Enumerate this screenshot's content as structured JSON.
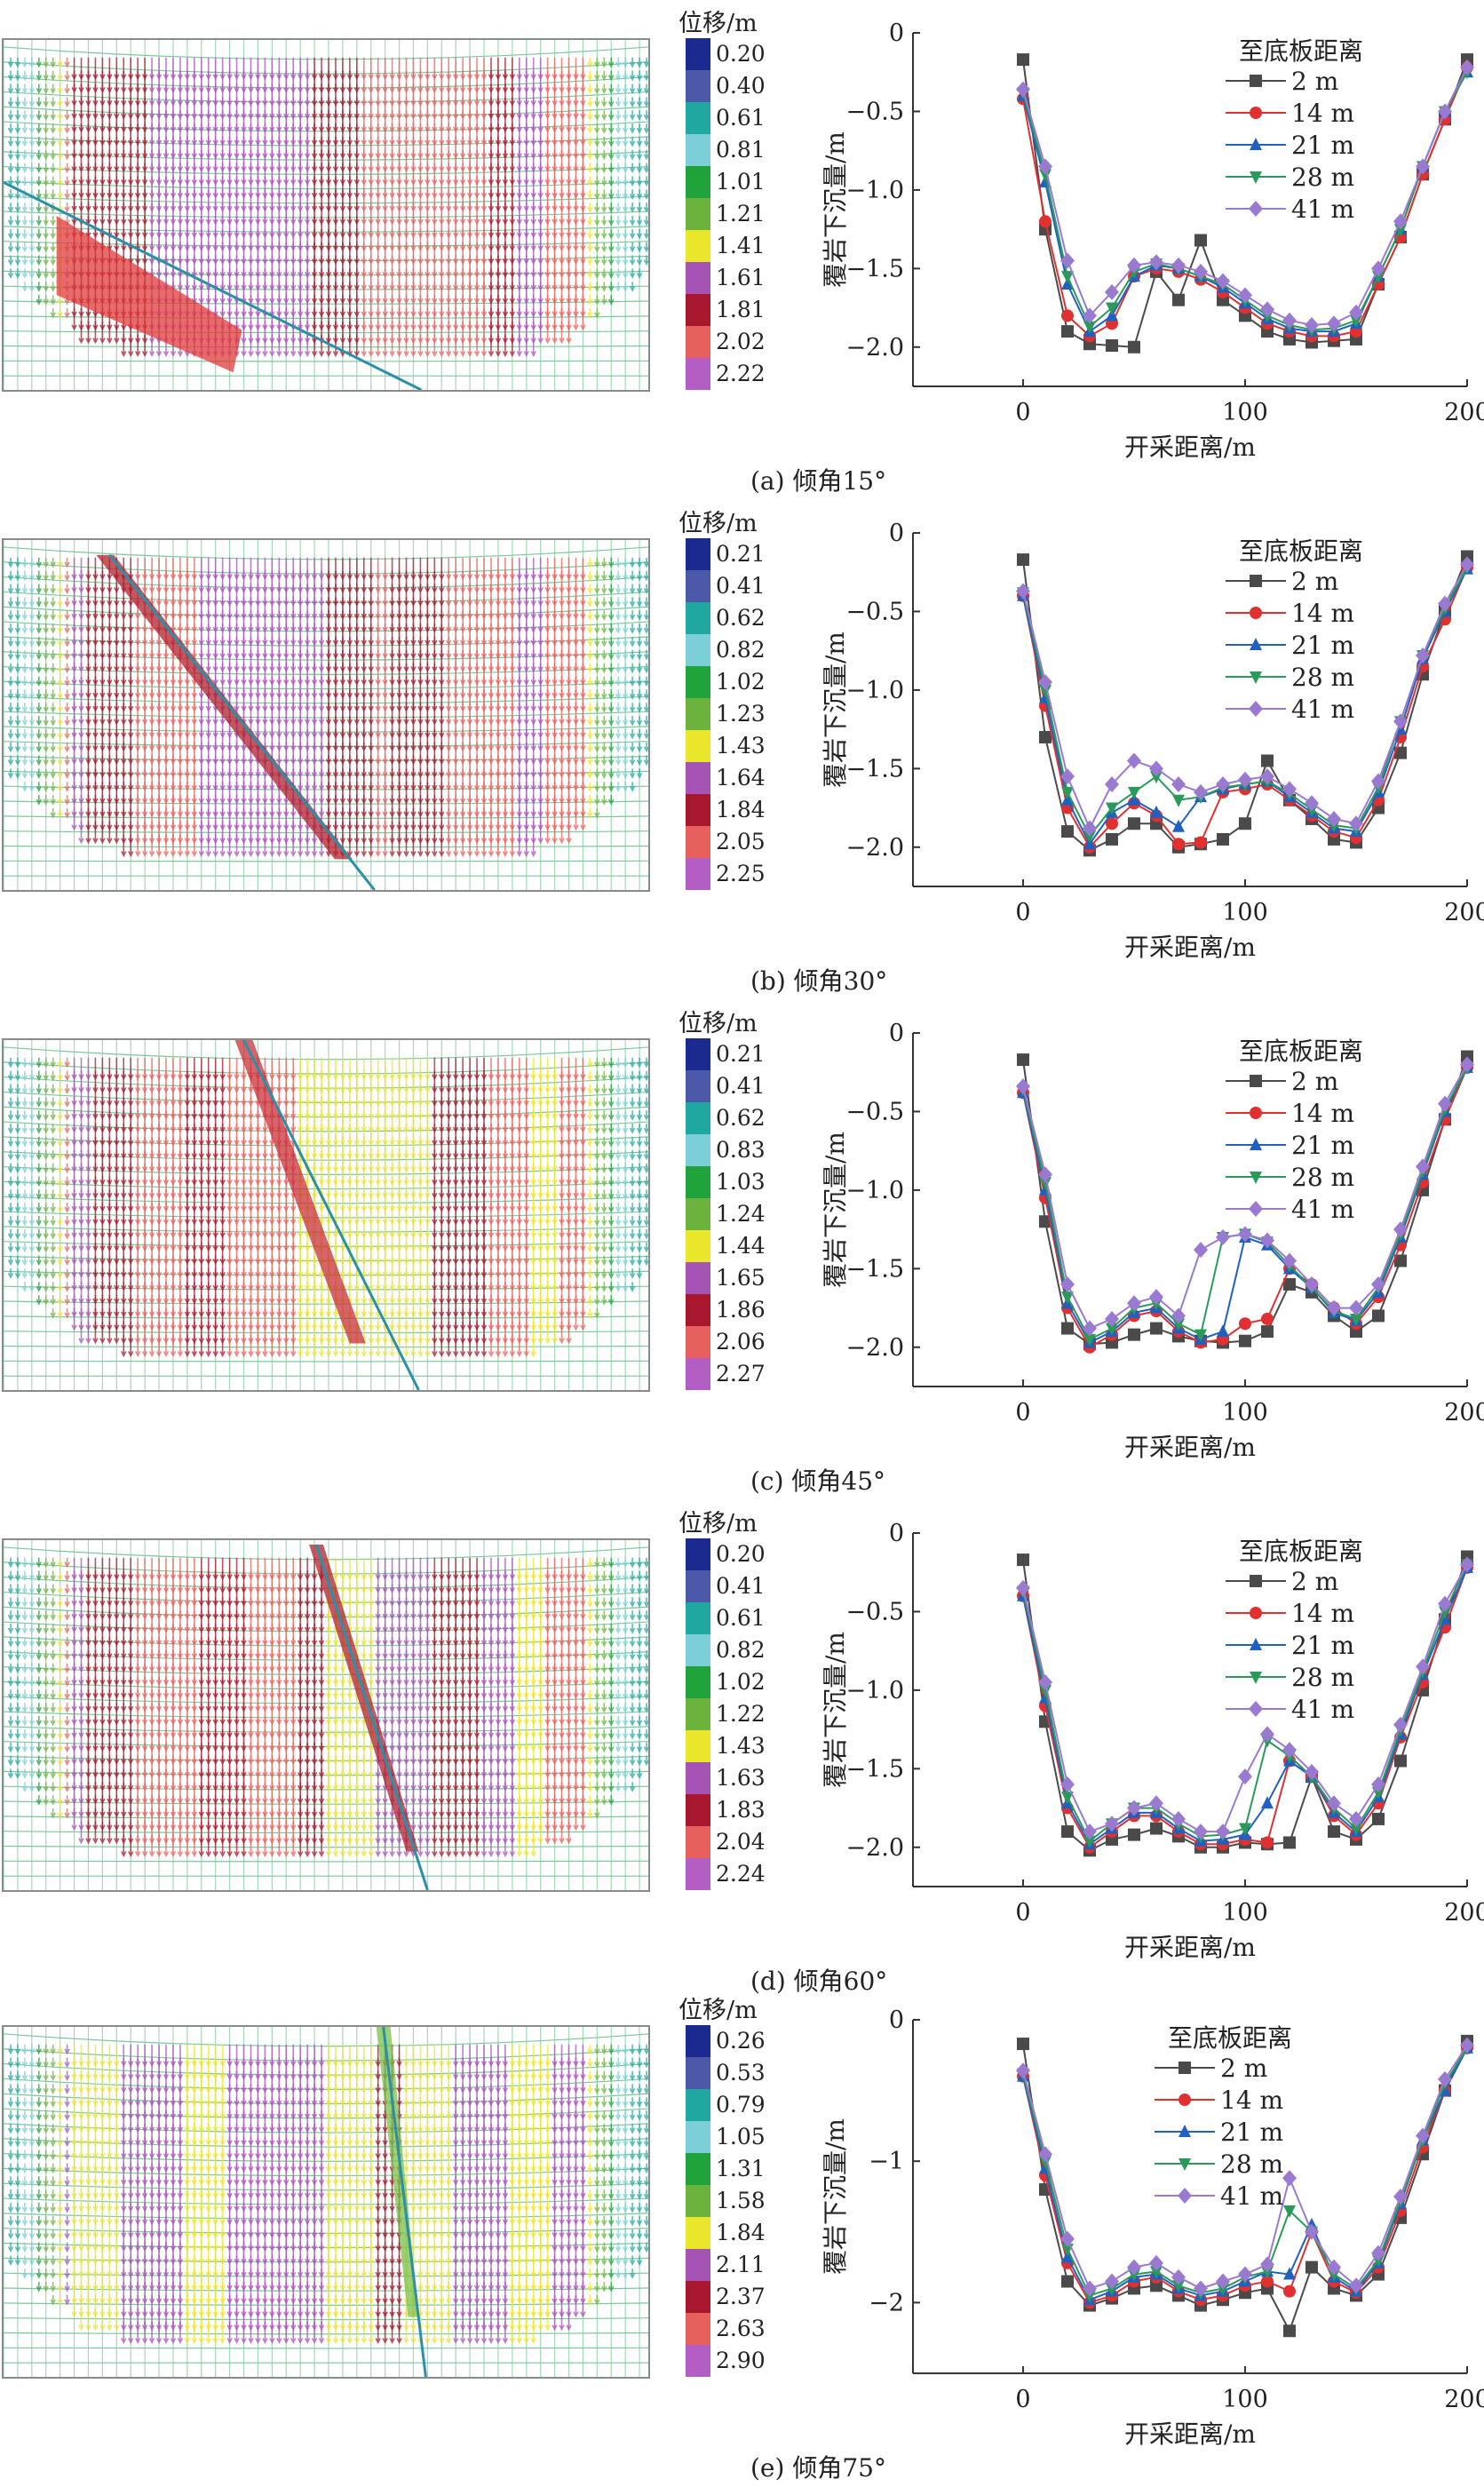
{
  "panels": [
    {
      "caption": "(a) 倾角15°",
      "colorbar": {
        "title": "位移/m",
        "values": [
          "0.20",
          "0.40",
          "0.61",
          "0.81",
          "1.01",
          "1.21",
          "1.41",
          "1.61",
          "1.81",
          "2.02",
          "2.22"
        ]
      }
    },
    {
      "caption": "(b) 倾角30°",
      "colorbar": {
        "title": "位移/m",
        "values": [
          "0.21",
          "0.41",
          "0.62",
          "0.82",
          "1.02",
          "1.23",
          "1.43",
          "1.64",
          "1.84",
          "2.05",
          "2.25"
        ]
      }
    },
    {
      "caption": "(c) 倾角45°",
      "colorbar": {
        "title": "位移/m",
        "values": [
          "0.21",
          "0.41",
          "0.62",
          "0.83",
          "1.03",
          "1.24",
          "1.44",
          "1.65",
          "1.86",
          "2.06",
          "2.27"
        ]
      }
    },
    {
      "caption": "(d) 倾角60°",
      "colorbar": {
        "title": "位移/m",
        "values": [
          "0.20",
          "0.41",
          "0.61",
          "0.82",
          "1.02",
          "1.22",
          "1.43",
          "1.63",
          "1.83",
          "2.04",
          "2.24"
        ]
      }
    },
    {
      "caption": "(e) 倾角75°",
      "colorbar": {
        "title": "位移/m",
        "values": [
          "0.26",
          "0.53",
          "0.79",
          "1.05",
          "1.31",
          "1.58",
          "1.84",
          "2.11",
          "2.37",
          "2.63",
          "2.90"
        ]
      }
    }
  ],
  "colorbar_colors": [
    "#1b2a8e",
    "#4a5aa8",
    "#1fa8a0",
    "#7ccfd6",
    "#1fa33a",
    "#6cb33e",
    "#e9e62c",
    "#a654b4",
    "#a8172b",
    "#e8605e",
    "#b25ec4"
  ],
  "chart_data": [
    {
      "type": "line",
      "title": "",
      "xlabel": "开采距离/m",
      "ylabel": "覆岩下沉量/m",
      "legend_title": "至底板距离",
      "legend_position": "top-right",
      "xlim": [
        -50,
        200
      ],
      "ylim": [
        -2.25,
        0
      ],
      "xticks": [
        0,
        100,
        200
      ],
      "yticks": [
        0,
        -0.5,
        -1.0,
        -1.5,
        -2.0
      ],
      "ytick_labels": [
        "0",
        "−0.5",
        "−1.0",
        "−1.5",
        "−2.0"
      ],
      "x": [
        0,
        10,
        20,
        30,
        40,
        50,
        60,
        70,
        80,
        90,
        100,
        110,
        120,
        130,
        140,
        150,
        160,
        170,
        180,
        190,
        200
      ],
      "series": [
        {
          "name": "2 m",
          "color": "#4a4a4a",
          "marker": "square",
          "values": [
            -0.17,
            -1.25,
            -1.9,
            -1.98,
            -1.99,
            -2.0,
            -1.52,
            -1.7,
            -1.32,
            -1.7,
            -1.8,
            -1.9,
            -1.95,
            -1.97,
            -1.96,
            -1.95,
            -1.6,
            -1.3,
            -0.9,
            -0.55,
            -0.17
          ]
        },
        {
          "name": "14 m",
          "color": "#e03030",
          "marker": "circle",
          "values": [
            -0.42,
            -1.2,
            -1.8,
            -1.93,
            -1.85,
            -1.55,
            -1.5,
            -1.52,
            -1.57,
            -1.65,
            -1.75,
            -1.85,
            -1.9,
            -1.93,
            -1.93,
            -1.9,
            -1.6,
            -1.3,
            -0.9,
            -0.55,
            -0.22
          ]
        },
        {
          "name": "21 m",
          "color": "#2060c0",
          "marker": "triangle-up",
          "values": [
            -0.4,
            -0.95,
            -1.6,
            -1.9,
            -1.8,
            -1.55,
            -1.48,
            -1.5,
            -1.55,
            -1.62,
            -1.72,
            -1.82,
            -1.88,
            -1.9,
            -1.9,
            -1.85,
            -1.55,
            -1.25,
            -0.85,
            -0.5,
            -0.25
          ]
        },
        {
          "name": "28 m",
          "color": "#2a9a5a",
          "marker": "triangle-down",
          "values": [
            -0.38,
            -0.9,
            -1.55,
            -1.87,
            -1.75,
            -1.52,
            -1.47,
            -1.5,
            -1.55,
            -1.6,
            -1.7,
            -1.8,
            -1.86,
            -1.89,
            -1.88,
            -1.83,
            -1.55,
            -1.25,
            -0.85,
            -0.5,
            -0.25
          ]
        },
        {
          "name": "41 m",
          "color": "#9a7ad0",
          "marker": "diamond",
          "values": [
            -0.36,
            -0.85,
            -1.45,
            -1.8,
            -1.65,
            -1.48,
            -1.46,
            -1.48,
            -1.52,
            -1.58,
            -1.67,
            -1.76,
            -1.83,
            -1.86,
            -1.85,
            -1.78,
            -1.5,
            -1.2,
            -0.85,
            -0.5,
            -0.22
          ]
        }
      ]
    },
    {
      "type": "line",
      "title": "",
      "xlabel": "开采距离/m",
      "ylabel": "覆岩下沉量/m",
      "legend_title": "至底板距离",
      "legend_position": "top-right",
      "xlim": [
        -50,
        200
      ],
      "ylim": [
        -2.25,
        0
      ],
      "xticks": [
        0,
        100,
        200
      ],
      "yticks": [
        0,
        -0.5,
        -1.0,
        -1.5,
        -2.0
      ],
      "ytick_labels": [
        "0",
        "−0.5",
        "−1.0",
        "−1.5",
        "−2.0"
      ],
      "x": [
        0,
        10,
        20,
        30,
        40,
        50,
        60,
        70,
        80,
        90,
        100,
        110,
        120,
        130,
        140,
        150,
        160,
        170,
        180,
        190,
        200
      ],
      "series": [
        {
          "name": "2 m",
          "color": "#4a4a4a",
          "marker": "square",
          "values": [
            -0.17,
            -1.3,
            -1.9,
            -2.02,
            -1.95,
            -1.85,
            -1.85,
            -2.0,
            -1.98,
            -1.95,
            -1.85,
            -1.45,
            -1.7,
            -1.82,
            -1.95,
            -1.97,
            -1.75,
            -1.4,
            -0.9,
            -0.5,
            -0.15
          ]
        },
        {
          "name": "14 m",
          "color": "#e03030",
          "marker": "circle",
          "values": [
            -0.4,
            -1.1,
            -1.75,
            -2.0,
            -1.85,
            -1.72,
            -1.8,
            -1.98,
            -1.97,
            -1.65,
            -1.63,
            -1.6,
            -1.7,
            -1.8,
            -1.9,
            -1.94,
            -1.7,
            -1.3,
            -0.85,
            -0.55,
            -0.22
          ]
        },
        {
          "name": "21 m",
          "color": "#2060c0",
          "marker": "triangle-up",
          "values": [
            -0.4,
            -1.05,
            -1.7,
            -1.98,
            -1.78,
            -1.7,
            -1.78,
            -1.87,
            -1.68,
            -1.63,
            -1.6,
            -1.58,
            -1.68,
            -1.78,
            -1.88,
            -1.9,
            -1.65,
            -1.25,
            -0.8,
            -0.5,
            -0.23
          ]
        },
        {
          "name": "28 m",
          "color": "#2a9a5a",
          "marker": "triangle-down",
          "values": [
            -0.38,
            -1.0,
            -1.65,
            -1.93,
            -1.75,
            -1.65,
            -1.55,
            -1.7,
            -1.68,
            -1.62,
            -1.6,
            -1.58,
            -1.66,
            -1.76,
            -1.86,
            -1.88,
            -1.62,
            -1.2,
            -0.78,
            -0.48,
            -0.22
          ]
        },
        {
          "name": "41 m",
          "color": "#9a7ad0",
          "marker": "diamond",
          "values": [
            -0.37,
            -0.95,
            -1.55,
            -1.88,
            -1.6,
            -1.45,
            -1.5,
            -1.6,
            -1.65,
            -1.6,
            -1.57,
            -1.55,
            -1.63,
            -1.72,
            -1.82,
            -1.85,
            -1.58,
            -1.2,
            -0.78,
            -0.45,
            -0.2
          ]
        }
      ]
    },
    {
      "type": "line",
      "title": "",
      "xlabel": "开采距离/m",
      "ylabel": "覆岩下沉量/m",
      "legend_title": "至底板距离",
      "legend_position": "top-right",
      "xlim": [
        -50,
        200
      ],
      "ylim": [
        -2.25,
        0
      ],
      "xticks": [
        0,
        100,
        200
      ],
      "yticks": [
        0,
        -0.5,
        -1.0,
        -1.5,
        -2.0
      ],
      "ytick_labels": [
        "0",
        "−0.5",
        "−1.0",
        "−1.5",
        "−2.0"
      ],
      "x": [
        0,
        10,
        20,
        30,
        40,
        50,
        60,
        70,
        80,
        90,
        100,
        110,
        120,
        130,
        140,
        150,
        160,
        170,
        180,
        190,
        200
      ],
      "series": [
        {
          "name": "2 m",
          "color": "#4a4a4a",
          "marker": "square",
          "values": [
            -0.17,
            -1.2,
            -1.88,
            -1.98,
            -1.97,
            -1.92,
            -1.88,
            -1.93,
            -1.96,
            -1.97,
            -1.96,
            -1.9,
            -1.6,
            -1.65,
            -1.8,
            -1.9,
            -1.8,
            -1.45,
            -1.0,
            -0.55,
            -0.15
          ]
        },
        {
          "name": "14 m",
          "color": "#e03030",
          "marker": "circle",
          "values": [
            -0.38,
            -1.05,
            -1.75,
            -2.0,
            -1.92,
            -1.8,
            -1.77,
            -1.9,
            -1.97,
            -1.95,
            -1.85,
            -1.82,
            -1.5,
            -1.6,
            -1.75,
            -1.85,
            -1.68,
            -1.35,
            -0.95,
            -0.55,
            -0.22
          ]
        },
        {
          "name": "21 m",
          "color": "#2060c0",
          "marker": "triangle-up",
          "values": [
            -0.38,
            -1.0,
            -1.72,
            -1.97,
            -1.9,
            -1.78,
            -1.75,
            -1.88,
            -1.95,
            -1.9,
            -1.3,
            -1.35,
            -1.5,
            -1.62,
            -1.78,
            -1.83,
            -1.65,
            -1.3,
            -0.9,
            -0.5,
            -0.22
          ]
        },
        {
          "name": "28 m",
          "color": "#2a9a5a",
          "marker": "triangle-down",
          "values": [
            -0.36,
            -0.95,
            -1.68,
            -1.95,
            -1.88,
            -1.75,
            -1.72,
            -1.85,
            -1.92,
            -1.3,
            -1.28,
            -1.33,
            -1.48,
            -1.62,
            -1.77,
            -1.82,
            -1.62,
            -1.28,
            -0.88,
            -0.48,
            -0.22
          ]
        },
        {
          "name": "41 m",
          "color": "#9a7ad0",
          "marker": "diamond",
          "values": [
            -0.34,
            -0.9,
            -1.6,
            -1.88,
            -1.82,
            -1.72,
            -1.68,
            -1.8,
            -1.38,
            -1.3,
            -1.28,
            -1.32,
            -1.45,
            -1.6,
            -1.75,
            -1.75,
            -1.6,
            -1.25,
            -0.85,
            -0.45,
            -0.2
          ]
        }
      ]
    },
    {
      "type": "line",
      "title": "",
      "xlabel": "开采距离/m",
      "ylabel": "覆岩下沉量/m",
      "legend_title": "至底板距离",
      "legend_position": "top-right",
      "xlim": [
        -50,
        200
      ],
      "ylim": [
        -2.25,
        0
      ],
      "xticks": [
        0,
        100,
        200
      ],
      "yticks": [
        0,
        -0.5,
        -1.0,
        -1.5,
        -2.0
      ],
      "ytick_labels": [
        "0",
        "−0.5",
        "−1.0",
        "−1.5",
        "−2.0"
      ],
      "x": [
        0,
        10,
        20,
        30,
        40,
        50,
        60,
        70,
        80,
        90,
        100,
        110,
        120,
        130,
        140,
        150,
        160,
        170,
        180,
        190,
        200
      ],
      "series": [
        {
          "name": "2 m",
          "color": "#4a4a4a",
          "marker": "square",
          "values": [
            -0.17,
            -1.2,
            -1.9,
            -2.02,
            -1.95,
            -1.92,
            -1.88,
            -1.93,
            -2.0,
            -2.0,
            -1.97,
            -1.98,
            -1.97,
            -1.55,
            -1.9,
            -1.95,
            -1.82,
            -1.45,
            -1.0,
            -0.55,
            -0.15
          ]
        },
        {
          "name": "14 m",
          "color": "#e03030",
          "marker": "circle",
          "values": [
            -0.4,
            -1.1,
            -1.75,
            -2.0,
            -1.9,
            -1.8,
            -1.8,
            -1.9,
            -1.98,
            -1.98,
            -1.95,
            -1.97,
            -1.45,
            -1.55,
            -1.8,
            -1.92,
            -1.72,
            -1.3,
            -0.95,
            -0.6,
            -0.22
          ]
        },
        {
          "name": "21 m",
          "color": "#2060c0",
          "marker": "triangle-up",
          "values": [
            -0.4,
            -1.05,
            -1.72,
            -1.98,
            -1.88,
            -1.78,
            -1.78,
            -1.88,
            -1.96,
            -1.95,
            -1.92,
            -1.72,
            -1.45,
            -1.55,
            -1.78,
            -1.9,
            -1.68,
            -1.28,
            -0.9,
            -0.55,
            -0.22
          ]
        },
        {
          "name": "28 m",
          "color": "#2a9a5a",
          "marker": "triangle-down",
          "values": [
            -0.37,
            -1.0,
            -1.68,
            -1.96,
            -1.85,
            -1.75,
            -1.75,
            -1.85,
            -1.93,
            -1.92,
            -1.88,
            -1.32,
            -1.42,
            -1.55,
            -1.75,
            -1.88,
            -1.65,
            -1.25,
            -0.88,
            -0.5,
            -0.2
          ]
        },
        {
          "name": "41 m",
          "color": "#9a7ad0",
          "marker": "diamond",
          "values": [
            -0.35,
            -0.95,
            -1.6,
            -1.9,
            -1.85,
            -1.75,
            -1.72,
            -1.82,
            -1.9,
            -1.9,
            -1.55,
            -1.28,
            -1.38,
            -1.52,
            -1.72,
            -1.82,
            -1.6,
            -1.22,
            -0.85,
            -0.45,
            -0.2
          ]
        }
      ]
    },
    {
      "type": "line",
      "title": "",
      "xlabel": "开采距离/m",
      "ylabel": "覆岩下沉量/m",
      "legend_title": "至底板距离",
      "legend_position": "top-center",
      "xlim": [
        -50,
        200
      ],
      "ylim": [
        -2.5,
        0
      ],
      "xticks": [
        0,
        100,
        200
      ],
      "yticks": [
        0,
        -1,
        -2
      ],
      "ytick_labels": [
        "0",
        "−1",
        "−2"
      ],
      "x": [
        0,
        10,
        20,
        30,
        40,
        50,
        60,
        70,
        80,
        90,
        100,
        110,
        120,
        130,
        140,
        150,
        160,
        170,
        180,
        190,
        200
      ],
      "series": [
        {
          "name": "2 m",
          "color": "#4a4a4a",
          "marker": "square",
          "values": [
            -0.17,
            -1.2,
            -1.85,
            -2.02,
            -1.97,
            -1.9,
            -1.88,
            -1.95,
            -2.02,
            -1.98,
            -1.93,
            -1.9,
            -2.2,
            -1.75,
            -1.9,
            -1.95,
            -1.8,
            -1.4,
            -0.95,
            -0.5,
            -0.15
          ]
        },
        {
          "name": "14 m",
          "color": "#e03030",
          "marker": "circle",
          "values": [
            -0.4,
            -1.1,
            -1.72,
            -2.0,
            -1.95,
            -1.85,
            -1.82,
            -1.92,
            -1.98,
            -1.95,
            -1.88,
            -1.85,
            -1.92,
            -1.5,
            -1.85,
            -1.93,
            -1.75,
            -1.35,
            -0.9,
            -0.5,
            -0.2
          ]
        },
        {
          "name": "21 m",
          "color": "#2060c0",
          "marker": "triangle-up",
          "values": [
            -0.4,
            -1.05,
            -1.68,
            -1.98,
            -1.92,
            -1.82,
            -1.8,
            -1.9,
            -1.95,
            -1.92,
            -1.85,
            -1.78,
            -1.8,
            -1.45,
            -1.82,
            -1.92,
            -1.72,
            -1.3,
            -0.85,
            -0.5,
            -0.2
          ]
        },
        {
          "name": "28 m",
          "color": "#2a9a5a",
          "marker": "triangle-down",
          "values": [
            -0.38,
            -1.0,
            -1.62,
            -1.95,
            -1.9,
            -1.8,
            -1.78,
            -1.88,
            -1.93,
            -1.9,
            -1.82,
            -1.78,
            -1.35,
            -1.5,
            -1.8,
            -1.9,
            -1.7,
            -1.28,
            -0.85,
            -0.45,
            -0.2
          ]
        },
        {
          "name": "41 m",
          "color": "#9a7ad0",
          "marker": "diamond",
          "values": [
            -0.36,
            -0.95,
            -1.55,
            -1.9,
            -1.85,
            -1.75,
            -1.72,
            -1.82,
            -1.9,
            -1.85,
            -1.8,
            -1.73,
            -1.12,
            -1.5,
            -1.75,
            -1.88,
            -1.65,
            -1.25,
            -0.82,
            -0.42,
            -0.18
          ]
        }
      ]
    }
  ]
}
